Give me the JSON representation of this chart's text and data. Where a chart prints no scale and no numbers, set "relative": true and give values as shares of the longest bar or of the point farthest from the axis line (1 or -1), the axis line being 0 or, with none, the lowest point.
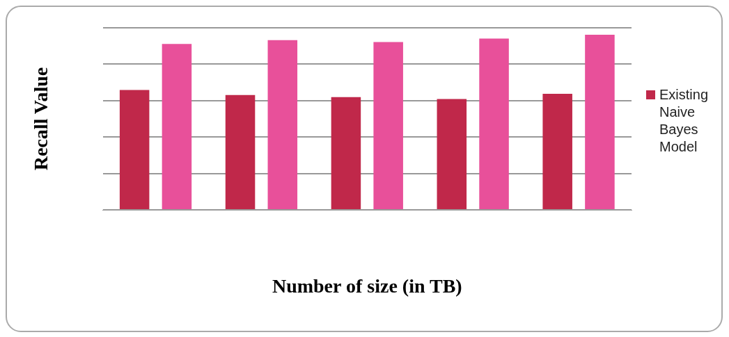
{
  "chart_data": {
    "type": "bar",
    "xlabel": "Number of size (in TB)",
    "ylabel": "Recall Value",
    "relative": true,
    "grid": "y",
    "legend": "right",
    "categories": [
      null,
      null,
      null,
      null,
      null
    ],
    "series": [
      {
        "name": "Existing Naive Bayes Model",
        "color": "#c0284a",
        "values": [
          0.685,
          0.656,
          0.644,
          0.633,
          0.663
        ]
      },
      {
        "color": "#e8509a",
        "values": [
          0.948,
          0.97,
          0.959,
          0.978,
          1
        ]
      }
    ]
  }
}
